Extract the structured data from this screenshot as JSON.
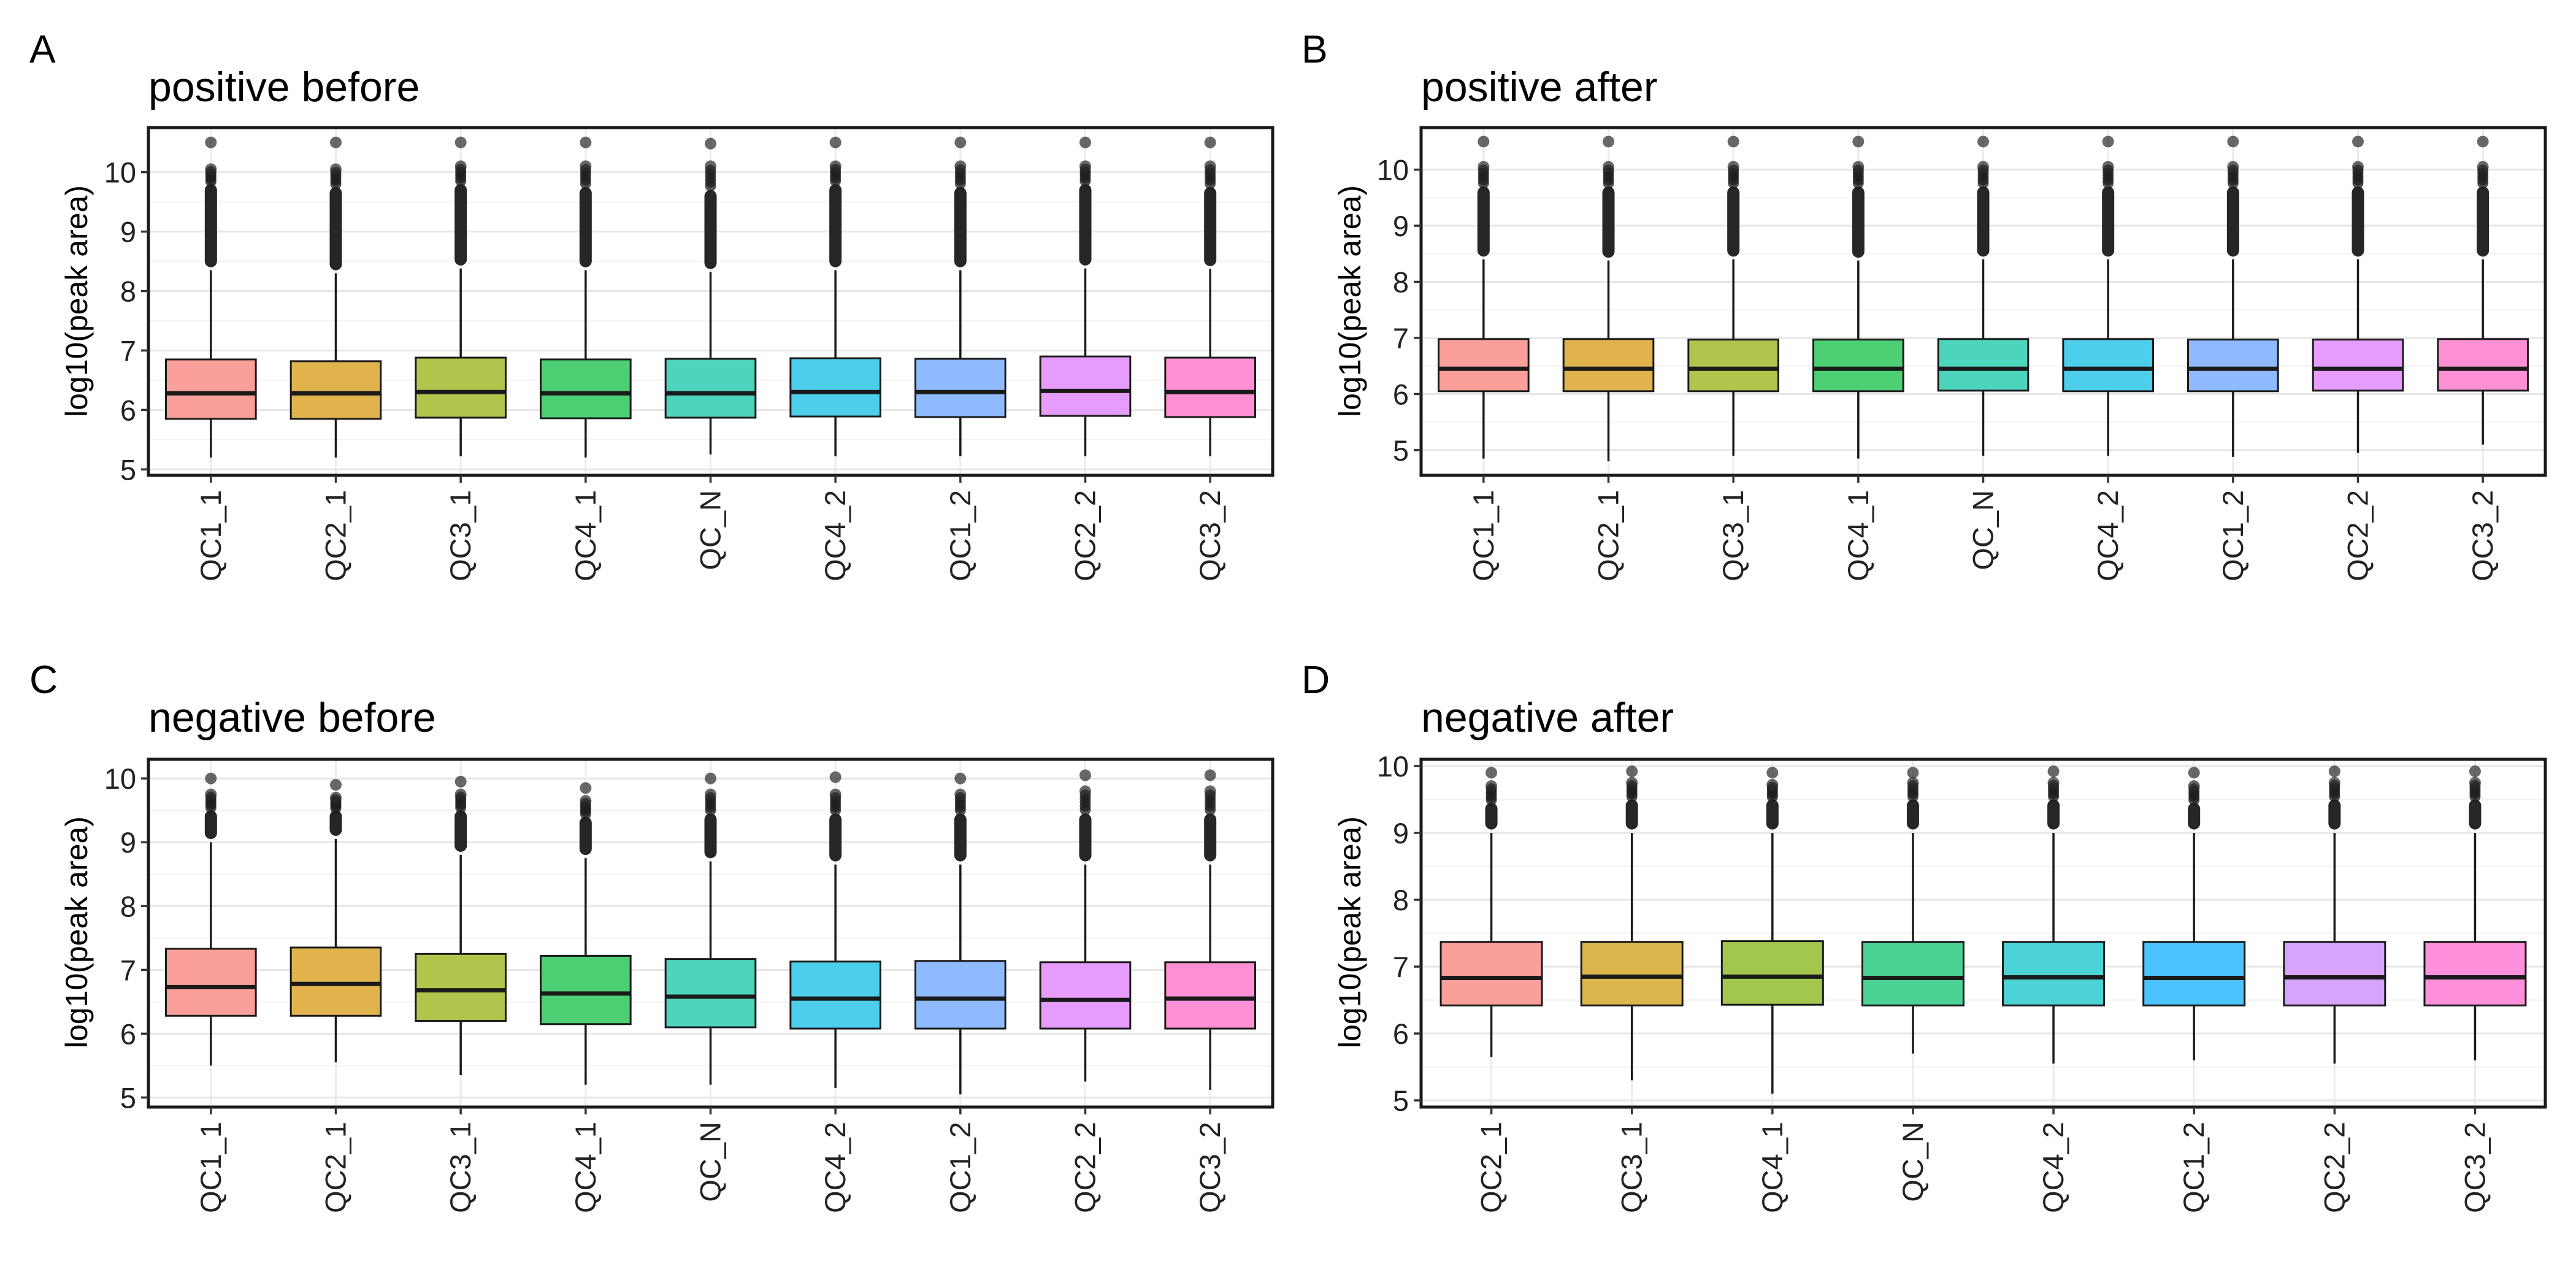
{
  "chart_data": [
    {
      "type": "box",
      "panel_label": "A",
      "title": "positive before",
      "ylabel": "log10(peak area)",
      "ylim": [
        4.9,
        10.75
      ],
      "yticks": [
        5,
        6,
        7,
        8,
        9,
        10
      ],
      "grid": true,
      "categories": [
        "QC1_1",
        "QC2_1",
        "QC3_1",
        "QC4_1",
        "QC_N",
        "QC4_2",
        "QC1_2",
        "QC2_2",
        "QC3_2"
      ],
      "colors": [
        "#F8766D",
        "#D39200",
        "#93AA00",
        "#00BA38",
        "#00C19F",
        "#00B9E3",
        "#619CFF",
        "#DB72FB",
        "#FF61C3"
      ],
      "boxes": [
        {
          "lower_whisker": 5.2,
          "q1": 5.85,
          "median": 6.28,
          "q3": 6.85,
          "upper_whisker": 8.35,
          "outliers_from": 8.4,
          "outliers_to": 9.8,
          "sparse_outliers": [
            10.05,
            10.5
          ]
        },
        {
          "lower_whisker": 5.2,
          "q1": 5.85,
          "median": 6.28,
          "q3": 6.82,
          "upper_whisker": 8.3,
          "outliers_from": 8.35,
          "outliers_to": 9.75,
          "sparse_outliers": [
            10.05,
            10.5
          ]
        },
        {
          "lower_whisker": 5.22,
          "q1": 5.87,
          "median": 6.3,
          "q3": 6.88,
          "upper_whisker": 8.38,
          "outliers_from": 8.43,
          "outliers_to": 9.8,
          "sparse_outliers": [
            10.1,
            10.5
          ]
        },
        {
          "lower_whisker": 5.2,
          "q1": 5.86,
          "median": 6.28,
          "q3": 6.85,
          "upper_whisker": 8.35,
          "outliers_from": 8.4,
          "outliers_to": 9.75,
          "sparse_outliers": [
            10.1,
            10.5
          ]
        },
        {
          "lower_whisker": 5.25,
          "q1": 5.87,
          "median": 6.28,
          "q3": 6.86,
          "upper_whisker": 8.32,
          "outliers_from": 8.37,
          "outliers_to": 9.7,
          "sparse_outliers": [
            10.1,
            10.48
          ]
        },
        {
          "lower_whisker": 5.22,
          "q1": 5.89,
          "median": 6.3,
          "q3": 6.87,
          "upper_whisker": 8.35,
          "outliers_from": 8.4,
          "outliers_to": 9.8,
          "sparse_outliers": [
            10.1,
            10.5
          ]
        },
        {
          "lower_whisker": 5.22,
          "q1": 5.88,
          "median": 6.3,
          "q3": 6.86,
          "upper_whisker": 8.35,
          "outliers_from": 8.4,
          "outliers_to": 9.75,
          "sparse_outliers": [
            10.1,
            10.5
          ]
        },
        {
          "lower_whisker": 5.22,
          "q1": 5.9,
          "median": 6.32,
          "q3": 6.9,
          "upper_whisker": 8.38,
          "outliers_from": 8.43,
          "outliers_to": 9.8,
          "sparse_outliers": [
            10.1,
            10.5
          ]
        },
        {
          "lower_whisker": 5.22,
          "q1": 5.88,
          "median": 6.3,
          "q3": 6.88,
          "upper_whisker": 8.37,
          "outliers_from": 8.42,
          "outliers_to": 9.75,
          "sparse_outliers": [
            10.1,
            10.5
          ]
        }
      ]
    },
    {
      "type": "box",
      "panel_label": "B",
      "title": "positive after",
      "ylabel": "log10(peak area)",
      "ylim": [
        4.55,
        10.75
      ],
      "yticks": [
        5,
        6,
        7,
        8,
        9,
        10
      ],
      "grid": true,
      "categories": [
        "QC1_1",
        "QC2_1",
        "QC3_1",
        "QC4_1",
        "QC_N",
        "QC4_2",
        "QC1_2",
        "QC2_2",
        "QC3_2"
      ],
      "colors": [
        "#F8766D",
        "#D39200",
        "#93AA00",
        "#00BA38",
        "#00C19F",
        "#00B9E3",
        "#619CFF",
        "#DB72FB",
        "#FF61C3"
      ],
      "boxes": [
        {
          "lower_whisker": 4.85,
          "q1": 6.05,
          "median": 6.45,
          "q3": 6.98,
          "upper_whisker": 8.4,
          "outliers_from": 8.45,
          "outliers_to": 9.7,
          "sparse_outliers": [
            10.05,
            10.5
          ]
        },
        {
          "lower_whisker": 4.8,
          "q1": 6.05,
          "median": 6.45,
          "q3": 6.98,
          "upper_whisker": 8.38,
          "outliers_from": 8.43,
          "outliers_to": 9.7,
          "sparse_outliers": [
            10.05,
            10.5
          ]
        },
        {
          "lower_whisker": 4.9,
          "q1": 6.05,
          "median": 6.45,
          "q3": 6.97,
          "upper_whisker": 8.4,
          "outliers_from": 8.45,
          "outliers_to": 9.7,
          "sparse_outliers": [
            10.05,
            10.5
          ]
        },
        {
          "lower_whisker": 4.85,
          "q1": 6.05,
          "median": 6.45,
          "q3": 6.97,
          "upper_whisker": 8.38,
          "outliers_from": 8.43,
          "outliers_to": 9.7,
          "sparse_outliers": [
            10.05,
            10.5
          ]
        },
        {
          "lower_whisker": 4.9,
          "q1": 6.06,
          "median": 6.45,
          "q3": 6.98,
          "upper_whisker": 8.4,
          "outliers_from": 8.45,
          "outliers_to": 9.7,
          "sparse_outliers": [
            10.05,
            10.5
          ]
        },
        {
          "lower_whisker": 4.9,
          "q1": 6.05,
          "median": 6.45,
          "q3": 6.98,
          "upper_whisker": 8.4,
          "outliers_from": 8.45,
          "outliers_to": 9.7,
          "sparse_outliers": [
            10.05,
            10.5
          ]
        },
        {
          "lower_whisker": 4.88,
          "q1": 6.05,
          "median": 6.45,
          "q3": 6.97,
          "upper_whisker": 8.4,
          "outliers_from": 8.45,
          "outliers_to": 9.7,
          "sparse_outliers": [
            10.05,
            10.5
          ]
        },
        {
          "lower_whisker": 4.95,
          "q1": 6.06,
          "median": 6.45,
          "q3": 6.97,
          "upper_whisker": 8.4,
          "outliers_from": 8.45,
          "outliers_to": 9.7,
          "sparse_outliers": [
            10.05,
            10.5
          ]
        },
        {
          "lower_whisker": 5.1,
          "q1": 6.06,
          "median": 6.45,
          "q3": 6.98,
          "upper_whisker": 8.4,
          "outliers_from": 8.45,
          "outliers_to": 9.7,
          "sparse_outliers": [
            10.05,
            10.5
          ]
        }
      ]
    },
    {
      "type": "box",
      "panel_label": "C",
      "title": "negative before",
      "ylabel": "log10(peak area)",
      "ylim": [
        4.85,
        10.3
      ],
      "yticks": [
        5,
        6,
        7,
        8,
        9,
        10
      ],
      "grid": true,
      "categories": [
        "QC1_1",
        "QC2_1",
        "QC3_1",
        "QC4_1",
        "QC_N",
        "QC4_2",
        "QC1_2",
        "QC2_2",
        "QC3_2"
      ],
      "colors": [
        "#F8766D",
        "#D39200",
        "#93AA00",
        "#00BA38",
        "#00C19F",
        "#00B9E3",
        "#619CFF",
        "#DB72FB",
        "#FF61C3"
      ],
      "boxes": [
        {
          "lower_whisker": 5.5,
          "q1": 6.28,
          "median": 6.73,
          "q3": 7.33,
          "upper_whisker": 9.0,
          "outliers_from": 9.05,
          "outliers_to": 9.5,
          "sparse_outliers": [
            9.75,
            10.0
          ]
        },
        {
          "lower_whisker": 5.55,
          "q1": 6.28,
          "median": 6.78,
          "q3": 7.35,
          "upper_whisker": 9.05,
          "outliers_from": 9.1,
          "outliers_to": 9.5,
          "sparse_outliers": [
            9.7,
            9.9
          ]
        },
        {
          "lower_whisker": 5.35,
          "q1": 6.2,
          "median": 6.68,
          "q3": 7.25,
          "upper_whisker": 8.8,
          "outliers_from": 8.85,
          "outliers_to": 9.5,
          "sparse_outliers": [
            9.75,
            9.95
          ]
        },
        {
          "lower_whisker": 5.2,
          "q1": 6.15,
          "median": 6.63,
          "q3": 7.22,
          "upper_whisker": 8.75,
          "outliers_from": 8.8,
          "outliers_to": 9.4,
          "sparse_outliers": [
            9.65,
            9.85
          ]
        },
        {
          "lower_whisker": 5.2,
          "q1": 6.1,
          "median": 6.58,
          "q3": 7.17,
          "upper_whisker": 8.7,
          "outliers_from": 8.75,
          "outliers_to": 9.45,
          "sparse_outliers": [
            9.75,
            10.0
          ]
        },
        {
          "lower_whisker": 5.15,
          "q1": 6.08,
          "median": 6.55,
          "q3": 7.13,
          "upper_whisker": 8.65,
          "outliers_from": 8.7,
          "outliers_to": 9.45,
          "sparse_outliers": [
            9.75,
            10.02
          ]
        },
        {
          "lower_whisker": 5.05,
          "q1": 6.08,
          "median": 6.55,
          "q3": 7.14,
          "upper_whisker": 8.65,
          "outliers_from": 8.7,
          "outliers_to": 9.45,
          "sparse_outliers": [
            9.75,
            10.0
          ]
        },
        {
          "lower_whisker": 5.25,
          "q1": 6.08,
          "median": 6.53,
          "q3": 7.12,
          "upper_whisker": 8.65,
          "outliers_from": 8.7,
          "outliers_to": 9.45,
          "sparse_outliers": [
            9.8,
            10.05
          ]
        },
        {
          "lower_whisker": 5.12,
          "q1": 6.08,
          "median": 6.55,
          "q3": 7.12,
          "upper_whisker": 8.65,
          "outliers_from": 8.7,
          "outliers_to": 9.45,
          "sparse_outliers": [
            9.8,
            10.05
          ]
        }
      ]
    },
    {
      "type": "box",
      "panel_label": "D",
      "title": "negative after",
      "ylabel": "log10(peak area)",
      "ylim": [
        4.9,
        10.1
      ],
      "yticks": [
        5,
        6,
        7,
        8,
        9,
        10
      ],
      "grid": true,
      "categories": [
        "QC2_1",
        "QC3_1",
        "QC4_1",
        "QC_N",
        "QC4_2",
        "QC1_2",
        "QC2_2",
        "QC3_2"
      ],
      "colors": [
        "#F8766D",
        "#CD9600",
        "#7CAE00",
        "#00BE67",
        "#00BFC4",
        "#00A9FF",
        "#C77CFF",
        "#FF61CC"
      ],
      "boxes": [
        {
          "lower_whisker": 5.65,
          "q1": 6.42,
          "median": 6.83,
          "q3": 7.37,
          "upper_whisker": 9.0,
          "outliers_from": 9.05,
          "outliers_to": 9.45,
          "sparse_outliers": [
            9.7,
            9.9
          ]
        },
        {
          "lower_whisker": 5.3,
          "q1": 6.42,
          "median": 6.85,
          "q3": 7.37,
          "upper_whisker": 9.0,
          "outliers_from": 9.05,
          "outliers_to": 9.5,
          "sparse_outliers": [
            9.75,
            9.92
          ]
        },
        {
          "lower_whisker": 5.1,
          "q1": 6.43,
          "median": 6.85,
          "q3": 7.38,
          "upper_whisker": 9.0,
          "outliers_from": 9.05,
          "outliers_to": 9.5,
          "sparse_outliers": [
            9.72,
            9.9
          ]
        },
        {
          "lower_whisker": 5.7,
          "q1": 6.42,
          "median": 6.83,
          "q3": 7.37,
          "upper_whisker": 9.0,
          "outliers_from": 9.05,
          "outliers_to": 9.5,
          "sparse_outliers": [
            9.75,
            9.9
          ]
        },
        {
          "lower_whisker": 5.55,
          "q1": 6.42,
          "median": 6.84,
          "q3": 7.37,
          "upper_whisker": 9.0,
          "outliers_from": 9.05,
          "outliers_to": 9.5,
          "sparse_outliers": [
            9.75,
            9.92
          ]
        },
        {
          "lower_whisker": 5.6,
          "q1": 6.42,
          "median": 6.83,
          "q3": 7.37,
          "upper_whisker": 9.0,
          "outliers_from": 9.05,
          "outliers_to": 9.45,
          "sparse_outliers": [
            9.7,
            9.9
          ]
        },
        {
          "lower_whisker": 5.55,
          "q1": 6.42,
          "median": 6.84,
          "q3": 7.37,
          "upper_whisker": 9.0,
          "outliers_from": 9.05,
          "outliers_to": 9.5,
          "sparse_outliers": [
            9.75,
            9.92
          ]
        },
        {
          "lower_whisker": 5.6,
          "q1": 6.42,
          "median": 6.84,
          "q3": 7.37,
          "upper_whisker": 9.0,
          "outliers_from": 9.05,
          "outliers_to": 9.5,
          "sparse_outliers": [
            9.75,
            9.92
          ]
        }
      ]
    }
  ]
}
